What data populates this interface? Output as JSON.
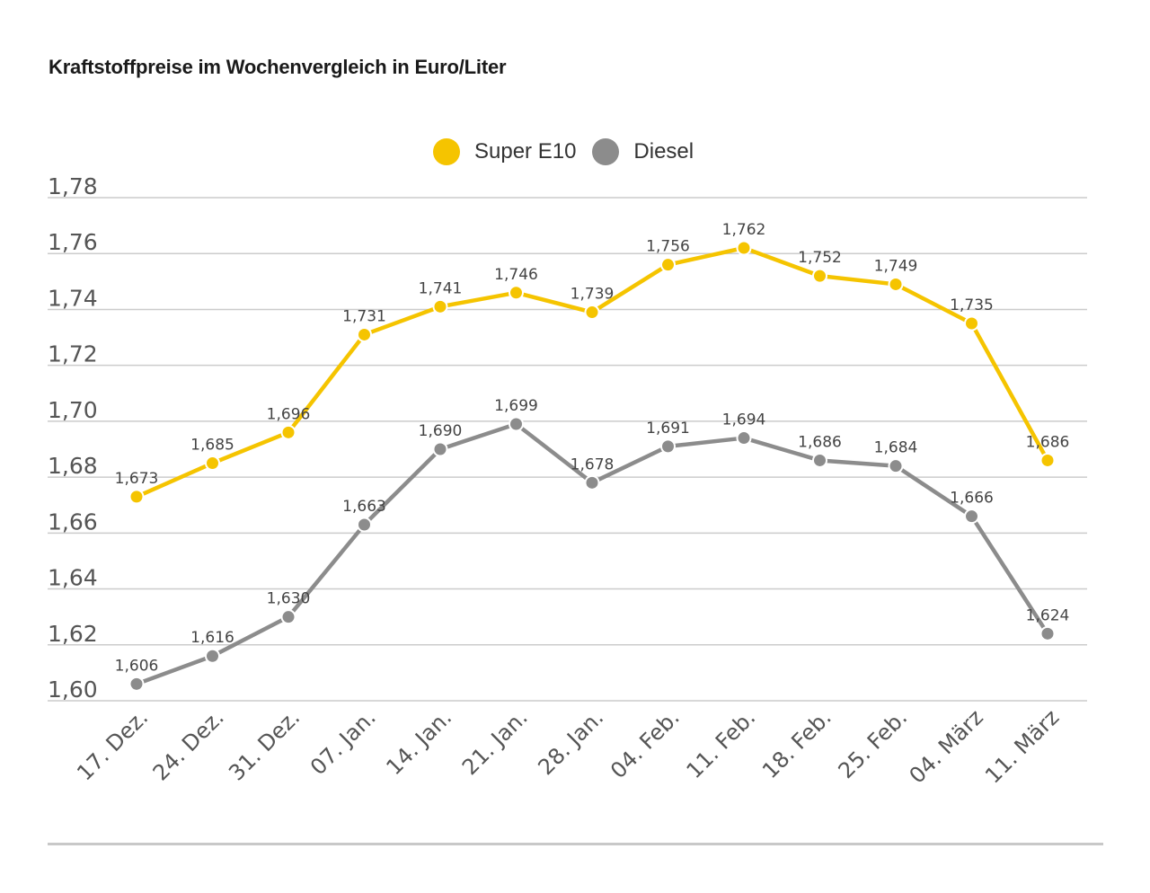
{
  "title": "Kraftstoffpreise im Wochenvergleich in Euro/Liter",
  "colors": {
    "super_e10": "#f5c400",
    "diesel": "#8c8c8c",
    "grid": "#cccccc",
    "axis_text": "#555555",
    "label_text": "#444444"
  },
  "chart_data": {
    "type": "line",
    "title": "Kraftstoffpreise im Wochenvergleich in Euro/Liter",
    "xlabel": "",
    "ylabel": "",
    "categories": [
      "17. Dez.",
      "24. Dez.",
      "31. Dez.",
      "07. Jan.",
      "14. Jan.",
      "21. Jan.",
      "28. Jan.",
      "04. Feb.",
      "11. Feb.",
      "18. Feb.",
      "25. Feb.",
      "04. März",
      "11. März"
    ],
    "series": [
      {
        "name": "Super E10",
        "color": "#f5c400",
        "values": [
          1.673,
          1.685,
          1.696,
          1.731,
          1.741,
          1.746,
          1.739,
          1.756,
          1.762,
          1.752,
          1.749,
          1.735,
          1.686
        ],
        "labels": [
          "1,673",
          "1,685",
          "1,696",
          "1,731",
          "1,741",
          "1,746",
          "1,739",
          "1,756",
          "1,762",
          "1,752",
          "1,749",
          "1,735",
          "1,686"
        ]
      },
      {
        "name": "Diesel",
        "color": "#8c8c8c",
        "values": [
          1.606,
          1.616,
          1.63,
          1.663,
          1.69,
          1.699,
          1.678,
          1.691,
          1.694,
          1.686,
          1.684,
          1.666,
          1.624
        ],
        "labels": [
          "1,606",
          "1,616",
          "1,630",
          "1,663",
          "1,690",
          "1,699",
          "1,678",
          "1,691",
          "1,694",
          "1,686",
          "1,684",
          "1,666",
          "1,624"
        ]
      }
    ],
    "ylim": [
      1.6,
      1.78
    ],
    "yticks": [
      1.6,
      1.62,
      1.64,
      1.66,
      1.68,
      1.7,
      1.72,
      1.74,
      1.76,
      1.78
    ],
    "ytick_labels": [
      "1,60",
      "1,62",
      "1,64",
      "1,66",
      "1,68",
      "1,70",
      "1,72",
      "1,74",
      "1,76",
      "1,78"
    ],
    "grid": true,
    "legend": "top-center"
  }
}
